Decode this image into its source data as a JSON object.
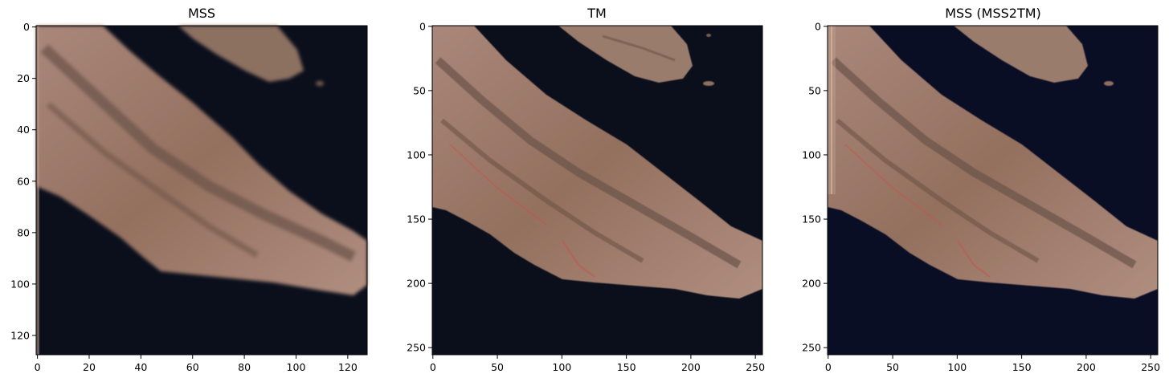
{
  "figure": {
    "panels": [
      {
        "title": "MSS",
        "image_size": 128,
        "x_ticks": [
          0,
          20,
          40,
          60,
          80,
          100,
          120
        ],
        "y_ticks": [
          0,
          20,
          40,
          60,
          80,
          100,
          120
        ],
        "variant": "mss"
      },
      {
        "title": "TM",
        "image_size": 256,
        "x_ticks": [
          0,
          50,
          100,
          150,
          200,
          250
        ],
        "y_ticks": [
          0,
          50,
          100,
          150,
          200,
          250
        ],
        "variant": "tm"
      },
      {
        "title": "MSS (MSS2TM)",
        "image_size": 256,
        "x_ticks": [
          0,
          50,
          100,
          150,
          200,
          250
        ],
        "y_ticks": [
          0,
          50,
          100,
          150,
          200,
          250
        ],
        "variant": "mss2tm"
      }
    ],
    "colors": {
      "water": "#0b0f1c",
      "water_mss2tm": "#0a0e24",
      "land": "#9b7a68",
      "land_light": "#b8978a",
      "land_dark": "#6a5248",
      "red_accent": "#c8504a"
    }
  }
}
